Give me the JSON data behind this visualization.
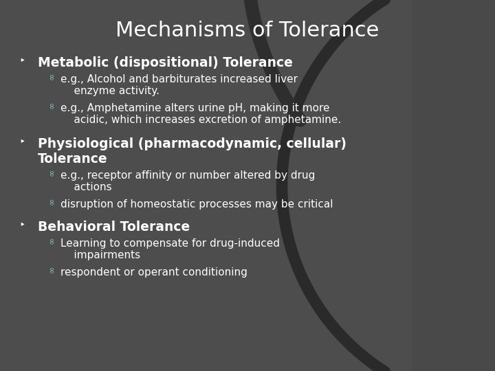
{
  "title": "Mechanisms of Tolerance",
  "title_fontsize": 22,
  "title_color": "#FFFFFF",
  "bg_color": "#4d4d4d",
  "bullet_color": "#FFFFFF",
  "sub_bullet_color": "#90C0C8",
  "sections": [
    {
      "heading": "Metabolic (dispositional) Tolerance",
      "heading_fontsize": 13.5,
      "sub_items": [
        "e.g., Alcohol and barbiturates increased liver\n    enzyme activity.",
        "e.g., Amphetamine alters urine pH, making it more\n    acidic, which increases excretion of amphetamine."
      ]
    },
    {
      "heading": "Physiological (pharmacodynamic, cellular)\nTolerance",
      "heading_fontsize": 13.5,
      "sub_items": [
        "e.g., receptor affinity or number altered by drug\n    actions",
        "disruption of homeostatic processes may be critical"
      ]
    },
    {
      "heading": "Behavioral Tolerance",
      "heading_fontsize": 13.5,
      "sub_items": [
        "Learning to compensate for drug-induced\n    impairments",
        "respondent or operant conditioning"
      ]
    }
  ],
  "sub_item_fontsize": 11,
  "figsize": [
    7.2,
    5.4
  ],
  "dpi": 100
}
